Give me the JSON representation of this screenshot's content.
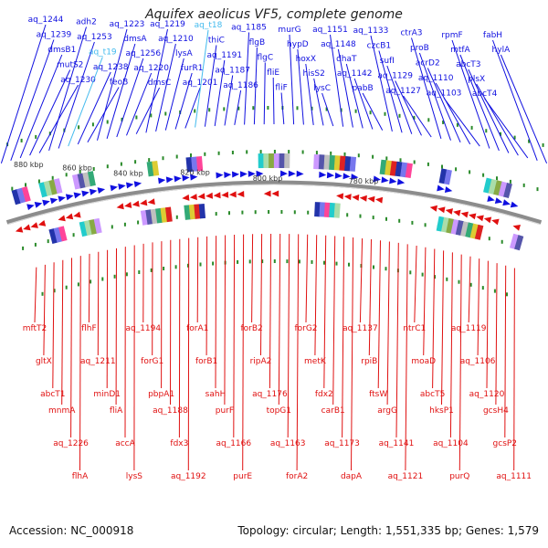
{
  "title": "Aquifex aeolicus VF5, complete genome",
  "footer": {
    "accession": "Accession: NC_000918",
    "summary": "Topology: circular; Length: 1,551,335 bp; Genes: 1,579"
  },
  "colors": {
    "plus_strand": "#1010e0",
    "minus_strand": "#e01010",
    "rna_label": "#44bbee",
    "backbone": "#8c8c8c",
    "tick_dot": "#2a8a2a"
  },
  "scale_labels": [
    {
      "text": "880 kbp"
    },
    {
      "text": "860 kbp"
    },
    {
      "text": "840 kbp"
    },
    {
      "text": "820 kbp"
    },
    {
      "text": "800 kbp"
    },
    {
      "text": "780 kbp"
    }
  ],
  "top_labels": [
    "aq_1244",
    "aq_1239",
    "dmsB1",
    "mutS2",
    "aq_1230",
    "adh2",
    "aq_1253",
    "aq_t19",
    "aq_1238",
    "feoB",
    "aq_1223",
    "dmsA",
    "aq_1256",
    "aq_1220",
    "dmsC",
    "aq_1219",
    "aq_1210",
    "lysA",
    "furR1",
    "aq_1201",
    "aq_t18",
    "thiC",
    "aq_1191",
    "aq_1187",
    "aq_1186",
    "aq_1185",
    "flgB",
    "flgC",
    "fliE",
    "fliF",
    "murG",
    "hypD",
    "hoxX",
    "hisS2",
    "lysC",
    "aq_1151",
    "aq_1148",
    "dhaT",
    "aq_1142",
    "pabB",
    "aq_1133",
    "czcB1",
    "sufI",
    "aq_1129",
    "aq_1127",
    "ctrA3",
    "proB",
    "acrD2",
    "aq_1110",
    "aq_1103",
    "rpmF",
    "mtfA",
    "abcT3",
    "plsX",
    "abcT4",
    "fabH",
    "hylA"
  ],
  "bottom_labels": [
    "mftT2",
    "gltX",
    "abcT1",
    "mnmA",
    "aq_1226",
    "flhA",
    "flhF",
    "aq_1211",
    "minD1",
    "fliA",
    "accA",
    "lysS",
    "aq_1194",
    "forG1",
    "pbpA1",
    "aq_1188",
    "fdx3",
    "aq_1192",
    "forA1",
    "forB1",
    "sahH",
    "purF",
    "aq_1166",
    "purE",
    "forB2",
    "ripA2",
    "aq_1176",
    "topG1",
    "aq_1163",
    "forA2",
    "forG2",
    "metK",
    "fdx2",
    "carB1",
    "aq_1173",
    "dapA",
    "aq_1137",
    "rpiB",
    "ftsW",
    "argG",
    "aq_1141",
    "aq_1121",
    "ntrC1",
    "moaD",
    "abcT5",
    "hksP1",
    "aq_1104",
    "purQ",
    "aq_1119",
    "aq_1106",
    "aq_1120",
    "gcsH4",
    "gcsP2",
    "aq_1111"
  ]
}
